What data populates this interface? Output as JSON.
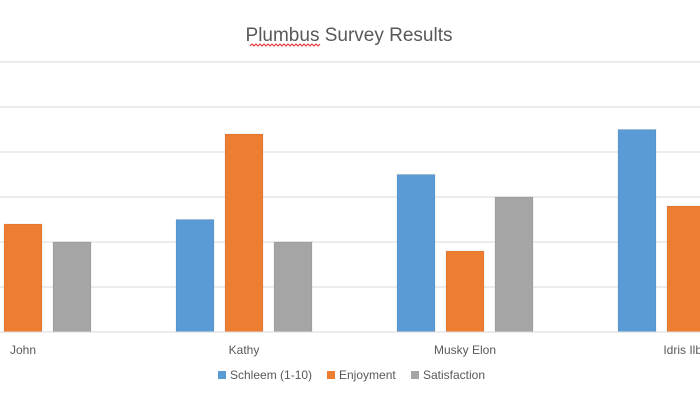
{
  "chart_data": {
    "type": "bar",
    "title": "Plumbus Survey Results",
    "categories": [
      "John",
      "Kathy",
      "Musky Elon",
      "Idris Ilba"
    ],
    "series": [
      {
        "name": "Schleem (1-10)",
        "color": "#5b9bd5",
        "values": [
          null,
          5,
          7,
          9
        ]
      },
      {
        "name": "Enjoyment",
        "color": "#ed7d31",
        "values": [
          4.8,
          8.8,
          3.6,
          5.6
        ]
      },
      {
        "name": "Satisfaction",
        "color": "#a5a5a5",
        "values": [
          4,
          4,
          6,
          null
        ]
      }
    ],
    "ylim": [
      0,
      12
    ],
    "grid": true,
    "legend": "bottom"
  }
}
